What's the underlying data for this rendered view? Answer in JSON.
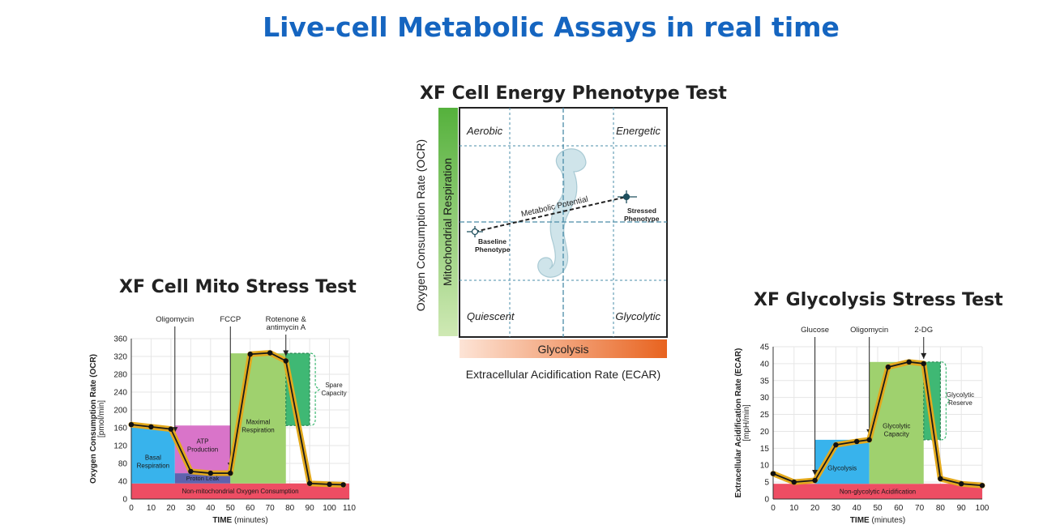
{
  "page": {
    "title": "Live-cell Metabolic Assays in real time"
  },
  "phenotype": {
    "title": "XF Cell Energy Phenotype Test",
    "y_outer_label": "Oxygen Consumption Rate (OCR)",
    "y_bar_label": "Mitochondrial Respiration",
    "x_bar_label": "Glycolysis",
    "x_outer_label": "Extracellular Acidification Rate (ECAR)",
    "quadrants": {
      "top_left": "Aerobic",
      "top_right": "Energetic",
      "bottom_left": "Quiescent",
      "bottom_right": "Glycolytic"
    },
    "metabolic_potential_label": "Metabolic Potential",
    "baseline_label": [
      "Baseline",
      "Phenotype"
    ],
    "stressed_label": [
      "Stressed",
      "Phenotype"
    ]
  },
  "mito": {
    "title": "XF Cell Mito Stress Test",
    "injections": [
      {
        "label": [
          "Oligomycin"
        ]
      },
      {
        "label": [
          "FCCP"
        ]
      },
      {
        "label": [
          "Rotenone &",
          "antimycin A"
        ]
      }
    ],
    "regions": {
      "basal": [
        "Basal",
        "Respiration"
      ],
      "atp": [
        "ATP",
        "Production"
      ],
      "proton": "Proton Leak",
      "maximal": [
        "Maximal",
        "Respiration"
      ],
      "spare": [
        "Spare",
        "Capacity"
      ],
      "nonmito": "Non-mitochondrial Oxygen Consumption"
    }
  },
  "glyco": {
    "title": "XF Glycolysis Stress Test",
    "injections": [
      {
        "label": [
          "Glucose"
        ]
      },
      {
        "label": [
          "Oligomycin"
        ]
      },
      {
        "label": [
          "2-DG"
        ]
      }
    ],
    "regions": {
      "glycolysis": "Glycolysis",
      "capacity": [
        "Glycolytic",
        "Capacity"
      ],
      "reserve": [
        "Glycolytic",
        "Reserve"
      ],
      "nonglyco": "Non-glycolytic Acidification"
    }
  },
  "chart_data": [
    {
      "type": "line",
      "title": "XF Cell Mito Stress Test",
      "xlabel": "TIME (minutes)",
      "ylabel": "Oxygen Consumption Rate (OCR) [pmol/min]",
      "xlim": [
        0,
        110
      ],
      "ylim": [
        0,
        360
      ],
      "xticks": [
        0,
        10,
        20,
        30,
        40,
        50,
        60,
        70,
        80,
        90,
        100,
        110
      ],
      "yticks": [
        0,
        40,
        80,
        120,
        160,
        200,
        240,
        280,
        320,
        360
      ],
      "injection_times": [
        22,
        50,
        78
      ],
      "series": [
        {
          "x": [
            0,
            10,
            20,
            30,
            40,
            50,
            60,
            70,
            78,
            90,
            100,
            107
          ],
          "y": [
            167,
            162,
            157,
            62,
            58,
            58,
            325,
            328,
            310,
            35,
            33,
            32
          ]
        }
      ],
      "regions": {
        "basal": {
          "x": [
            0,
            22
          ],
          "y": [
            35,
            160
          ]
        },
        "atp_production": {
          "x": [
            22,
            50
          ],
          "y": [
            58,
            165
          ]
        },
        "proton_leak": {
          "x": [
            22,
            50
          ],
          "y": [
            35,
            58
          ]
        },
        "maximal_respiration": {
          "x": [
            50,
            78
          ],
          "y": [
            35,
            327
          ]
        },
        "spare_capacity": {
          "x": [
            78,
            90
          ],
          "y": [
            165,
            327
          ]
        },
        "non_mitochondrial": {
          "x": [
            0,
            110
          ],
          "y": [
            0,
            35
          ]
        }
      }
    },
    {
      "type": "line",
      "title": "XF Glycolysis Stress Test",
      "xlabel": "TIME (minutes)",
      "ylabel": "Extracellular Acidification Rate (ECAR) [mpH/min]",
      "xlim": [
        0,
        100
      ],
      "ylim": [
        0,
        45
      ],
      "xticks": [
        0,
        10,
        20,
        30,
        40,
        50,
        60,
        70,
        80,
        90,
        100
      ],
      "yticks": [
        0,
        5,
        10,
        15,
        20,
        25,
        30,
        35,
        40,
        45
      ],
      "injection_times": [
        20,
        46,
        72
      ],
      "series": [
        {
          "x": [
            0,
            10,
            20,
            30,
            40,
            46,
            55,
            65,
            72,
            80,
            90,
            100
          ],
          "y": [
            7.5,
            5,
            5.5,
            16,
            17,
            17.5,
            39,
            40.5,
            40,
            6,
            4.5,
            4
          ]
        }
      ],
      "regions": {
        "glycolysis": {
          "x": [
            20,
            46
          ],
          "y": [
            4.5,
            17.5
          ]
        },
        "glycolytic_capacity": {
          "x": [
            46,
            72
          ],
          "y": [
            4.5,
            40.5
          ]
        },
        "glycolytic_reserve": {
          "x": [
            72,
            80
          ],
          "y": [
            17.5,
            40.5
          ]
        },
        "non_glycolytic": {
          "x": [
            0,
            100
          ],
          "y": [
            0,
            4.5
          ]
        }
      }
    }
  ]
}
